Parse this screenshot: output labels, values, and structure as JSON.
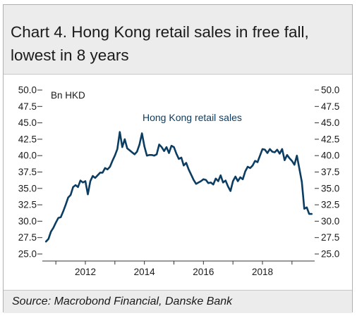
{
  "title": "Chart 4. Hong Kong retail sales in free fall, lowest in 8 years",
  "source": "Source: Macrobond Financial, Danske Bank",
  "colors": {
    "line": "#0b3d63",
    "label": "#0b3d63",
    "text": "#1a1a1a",
    "panel": "#ececec"
  },
  "chart_data": {
    "type": "line",
    "title": "Chart 4. Hong Kong retail sales in free fall, lowest in 8 years",
    "unit": "Bn HKD",
    "ylim": [
      25.0,
      50.0
    ],
    "yticks": [
      "50.0",
      "47.5",
      "45.0",
      "42.5",
      "40.0",
      "37.5",
      "35.0",
      "32.5",
      "30.0",
      "27.5",
      "25.0"
    ],
    "xticks": [
      "2012",
      "2014",
      "2016",
      "2018"
    ],
    "grid": false,
    "series": [
      {
        "name": "Hong Kong retail sales",
        "x": [
          "2010-09",
          "2010-10",
          "2010-11",
          "2010-12",
          "2011-01",
          "2011-02",
          "2011-03",
          "2011-04",
          "2011-05",
          "2011-06",
          "2011-07",
          "2011-08",
          "2011-09",
          "2011-10",
          "2011-11",
          "2011-12",
          "2012-01",
          "2012-02",
          "2012-03",
          "2012-04",
          "2012-05",
          "2012-06",
          "2012-07",
          "2012-08",
          "2012-09",
          "2012-10",
          "2012-11",
          "2012-12",
          "2013-01",
          "2013-02",
          "2013-03",
          "2013-04",
          "2013-05",
          "2013-06",
          "2013-07",
          "2013-08",
          "2013-09",
          "2013-10",
          "2013-11",
          "2013-12",
          "2014-01",
          "2014-02",
          "2014-03",
          "2014-04",
          "2014-05",
          "2014-06",
          "2014-07",
          "2014-08",
          "2014-09",
          "2014-10",
          "2014-11",
          "2014-12",
          "2015-01",
          "2015-02",
          "2015-03",
          "2015-04",
          "2015-05",
          "2015-06",
          "2015-07",
          "2015-08",
          "2015-09",
          "2015-10",
          "2015-11",
          "2015-12",
          "2016-01",
          "2016-02",
          "2016-03",
          "2016-04",
          "2016-05",
          "2016-06",
          "2016-07",
          "2016-08",
          "2016-09",
          "2016-10",
          "2016-11",
          "2016-12",
          "2017-01",
          "2017-02",
          "2017-03",
          "2017-04",
          "2017-05",
          "2017-06",
          "2017-07",
          "2017-08",
          "2017-09",
          "2017-10",
          "2017-11",
          "2017-12",
          "2018-01",
          "2018-02",
          "2018-03",
          "2018-04",
          "2018-05",
          "2018-06",
          "2018-07",
          "2018-08",
          "2018-09",
          "2018-10",
          "2018-11",
          "2018-12",
          "2019-01",
          "2019-02",
          "2019-03",
          "2019-04",
          "2019-05",
          "2019-06",
          "2019-07",
          "2019-08",
          "2019-09"
        ],
        "values": [
          26.9,
          27.3,
          28.4,
          29.0,
          29.8,
          30.5,
          30.6,
          31.5,
          32.5,
          33.6,
          34.0,
          35.2,
          35.5,
          35.2,
          36.2,
          35.9,
          36.1,
          34.1,
          36.1,
          36.9,
          36.6,
          37.0,
          37.4,
          37.4,
          38.1,
          37.9,
          38.3,
          39.2,
          40.0,
          41.0,
          43.6,
          41.3,
          42.5,
          41.1,
          40.8,
          40.5,
          40.2,
          40.6,
          41.7,
          43.4,
          41.4,
          40.0,
          40.1,
          40.1,
          40.0,
          40.2,
          41.7,
          41.3,
          40.7,
          41.3,
          40.4,
          41.5,
          41.3,
          40.3,
          39.5,
          39.7,
          38.5,
          38.9,
          37.9,
          37.1,
          36.3,
          35.7,
          35.9,
          36.1,
          36.4,
          36.3,
          35.8,
          35.9,
          35.6,
          36.5,
          36.1,
          37.0,
          35.9,
          36.2,
          35.3,
          34.6,
          36.1,
          36.8,
          36.1,
          36.7,
          36.4,
          37.6,
          38.3,
          38.1,
          38.5,
          39.2,
          39.0,
          40.0,
          41.0,
          40.9,
          40.4,
          41.0,
          40.6,
          40.5,
          40.9,
          40.3,
          41.0,
          39.3,
          40.1,
          39.6,
          39.2,
          38.6,
          40.0,
          38.0,
          36.0,
          31.9,
          32.1,
          31.1,
          31.1
        ]
      }
    ],
    "legend": "inline-label"
  }
}
